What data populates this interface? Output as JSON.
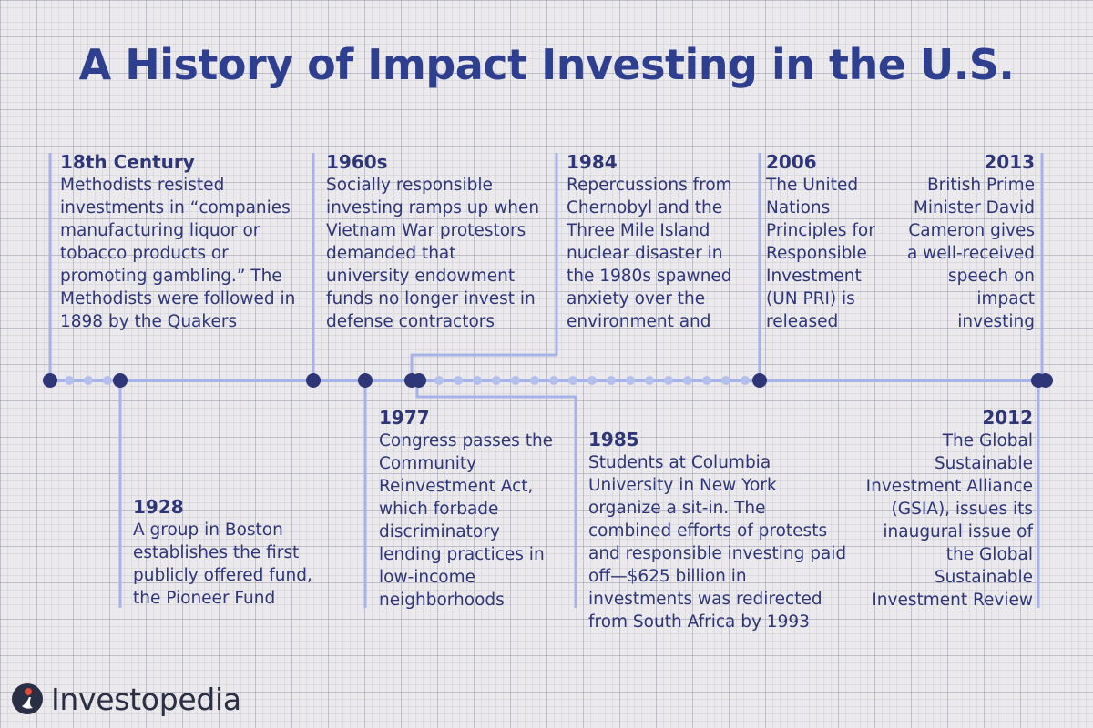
{
  "title": "A History of Impact Investing in the U.S.",
  "colors": {
    "line": "#a6b3e8",
    "dot": "#2f3677",
    "small_dot": "#b4bfee",
    "text": "#2f3677",
    "logo_red": "#e04a39"
  },
  "events": [
    {
      "year": "18th Century",
      "text": "Methodists resisted investments in “companies manufacturing liquor or tobacco products or promoting gambling.” The Methodists were followed in 1898 by the Quakers"
    },
    {
      "year": "1928",
      "text": "A group in Boston establishes the first publicly offered fund, the Pioneer Fund"
    },
    {
      "year": "1960s",
      "text": "Socially responsible investing ramps up when Vietnam War protestors demanded that university endowment funds no longer invest in defense contractors"
    },
    {
      "year": "1977",
      "text": "Congress passes the Community Reinvestment Act, which forbade discriminatory lending practices in low-income neighborhoods"
    },
    {
      "year": "1984",
      "text": "Repercussions from Chernobyl and the Three Mile Island nuclear disaster in the 1980s spawned anxiety over the environment and"
    },
    {
      "year": "1985",
      "text": "Students at Columbia University in New York organize a sit-in. The combined efforts of protests and responsible investing paid off—$625 billion in investments was redirected from South Africa by 1993"
    },
    {
      "year": "2006",
      "text": "The United Nations Principles for Responsible Investment (UN PRI) is released"
    },
    {
      "year": "2012",
      "text": "The Global Sustainable Investment Alliance (GSIA), issues its inaugural issue of the Global Sustainable Investment Review"
    },
    {
      "year": "2013",
      "text": "British Prime Minister David Cameron gives a well-received speech on impact investing"
    }
  ],
  "brand": {
    "name": "Investopedia",
    "icon": "investopedia-logo-icon"
  }
}
